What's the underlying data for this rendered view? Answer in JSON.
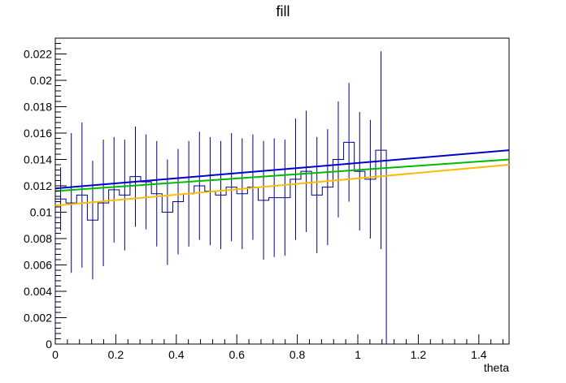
{
  "chart_data": {
    "type": "line",
    "title": "fill",
    "xlabel": "theta",
    "ylabel": "",
    "xlim": [
      0,
      1.5
    ],
    "ylim": [
      0,
      0.0232
    ],
    "x_ticks": [
      0,
      0.2,
      0.4,
      0.6,
      0.8,
      1,
      1.2,
      1.4
    ],
    "x_tick_labels": [
      "0",
      "0.2",
      "0.4",
      "0.6",
      "0.8",
      "1",
      "1.2",
      "1.4"
    ],
    "y_ticks": [
      0,
      0.002,
      0.004,
      0.006,
      0.008,
      0.01,
      0.012,
      0.014,
      0.016,
      0.018,
      0.02,
      0.022
    ],
    "y_tick_labels": [
      "0",
      "0.002",
      "0.004",
      "0.006",
      "0.008",
      "0.01",
      "0.012",
      "0.014",
      "0.016",
      "0.018",
      "0.02",
      "0.022"
    ],
    "histogram": {
      "color": "#00008b",
      "bin_width": 0.0353,
      "bins": [
        {
          "x": 0.0,
          "y": 0.011,
          "err": 0.0024
        },
        {
          "x": 0.0353,
          "y": 0.0107,
          "err": 0.0053
        },
        {
          "x": 0.0706,
          "y": 0.0113,
          "err": 0.0055
        },
        {
          "x": 0.1059,
          "y": 0.0094,
          "err": 0.0045
        },
        {
          "x": 0.1412,
          "y": 0.0107,
          "err": 0.0048
        },
        {
          "x": 0.1765,
          "y": 0.0117,
          "err": 0.004
        },
        {
          "x": 0.2118,
          "y": 0.0113,
          "err": 0.0042
        },
        {
          "x": 0.2471,
          "y": 0.0127,
          "err": 0.0038
        },
        {
          "x": 0.2824,
          "y": 0.0123,
          "err": 0.0036
        },
        {
          "x": 0.3177,
          "y": 0.0114,
          "err": 0.004
        },
        {
          "x": 0.353,
          "y": 0.01,
          "err": 0.004
        },
        {
          "x": 0.3883,
          "y": 0.0108,
          "err": 0.004
        },
        {
          "x": 0.4236,
          "y": 0.0114,
          "err": 0.004
        },
        {
          "x": 0.4589,
          "y": 0.012,
          "err": 0.0041
        },
        {
          "x": 0.4942,
          "y": 0.0116,
          "err": 0.0041
        },
        {
          "x": 0.5295,
          "y": 0.0113,
          "err": 0.0041
        },
        {
          "x": 0.5648,
          "y": 0.0119,
          "err": 0.0041
        },
        {
          "x": 0.6001,
          "y": 0.0114,
          "err": 0.0042
        },
        {
          "x": 0.6354,
          "y": 0.0119,
          "err": 0.004
        },
        {
          "x": 0.6707,
          "y": 0.0109,
          "err": 0.0045
        },
        {
          "x": 0.706,
          "y": 0.0111,
          "err": 0.0045
        },
        {
          "x": 0.7413,
          "y": 0.0111,
          "err": 0.0044
        },
        {
          "x": 0.7766,
          "y": 0.0125,
          "err": 0.0046
        },
        {
          "x": 0.8119,
          "y": 0.0131,
          "err": 0.0046
        },
        {
          "x": 0.8472,
          "y": 0.0113,
          "err": 0.0044
        },
        {
          "x": 0.8825,
          "y": 0.0119,
          "err": 0.0044
        },
        {
          "x": 0.9178,
          "y": 0.014,
          "err": 0.0044
        },
        {
          "x": 0.9531,
          "y": 0.0153,
          "err": 0.0045
        },
        {
          "x": 0.9884,
          "y": 0.0131,
          "err": 0.0045
        },
        {
          "x": 1.0237,
          "y": 0.0125,
          "err": 0.0045
        },
        {
          "x": 1.059,
          "y": 0.0147,
          "err": 0.0075
        }
      ]
    },
    "series": [
      {
        "color": "#0000cc",
        "x": [
          0,
          1.5
        ],
        "y": [
          0.0118,
          0.0147
        ]
      },
      {
        "color": "#00bb00",
        "x": [
          0,
          1.5
        ],
        "y": [
          0.0116,
          0.014
        ]
      },
      {
        "color": "#ffbb00",
        "x": [
          0,
          1.5
        ],
        "y": [
          0.0105,
          0.0136
        ]
      }
    ]
  }
}
